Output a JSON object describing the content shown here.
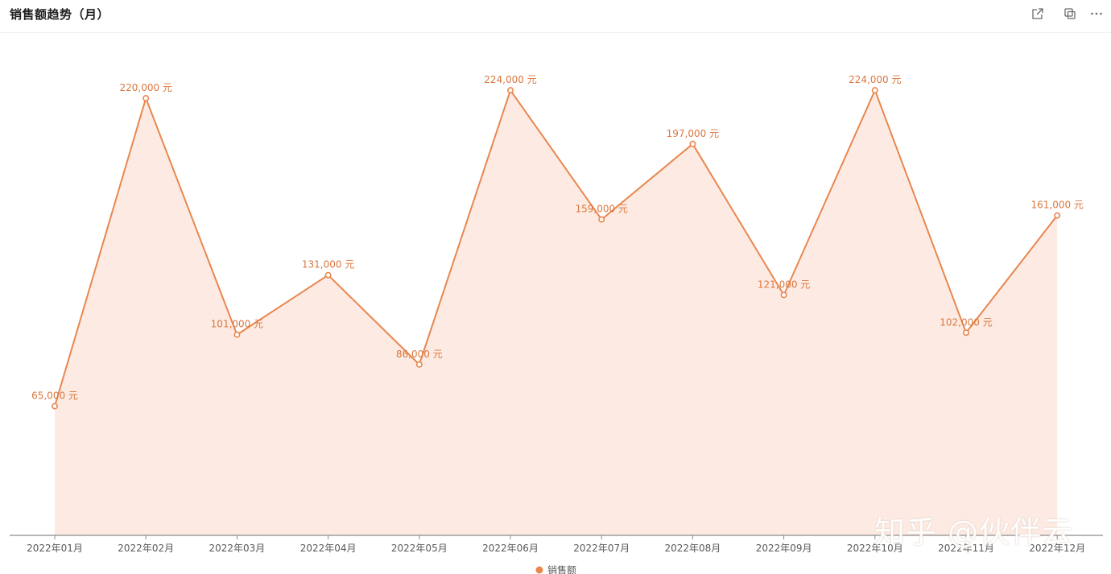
{
  "header": {
    "title": "销售额趋势（月）",
    "icons": [
      "expand-icon",
      "copy-icon",
      "more-icon"
    ]
  },
  "watermark": "知乎 @伙伴云",
  "colors": {
    "line": "#e8874f",
    "area": "#fdebe3",
    "label": "#d9773e",
    "axis": "#8c8c8c",
    "tick": "#595959"
  },
  "chart_data": {
    "type": "area",
    "title": "",
    "xlabel": "",
    "ylabel": "",
    "ylim": [
      0,
      250000
    ],
    "grid": false,
    "legend": "bottom-center",
    "categories": [
      "2022年01月",
      "2022年02月",
      "2022年03月",
      "2022年04月",
      "2022年05月",
      "2022年06月",
      "2022年07月",
      "2022年08月",
      "2022年09月",
      "2022年10月",
      "2022年11月",
      "2022年12月"
    ],
    "series": [
      {
        "name": "销售额",
        "values": [
          65000,
          220000,
          101000,
          131000,
          86000,
          224000,
          159000,
          197000,
          121000,
          224000,
          102000,
          161000
        ],
        "labels": [
          "65,000 元",
          "220,000 元",
          "101,000 元",
          "131,000 元",
          "86,000 元",
          "224,000 元",
          "159,000 元",
          "197,000 元",
          "121,000 元",
          "224,000 元",
          "102,000 元",
          "161,000 元"
        ]
      }
    ]
  }
}
